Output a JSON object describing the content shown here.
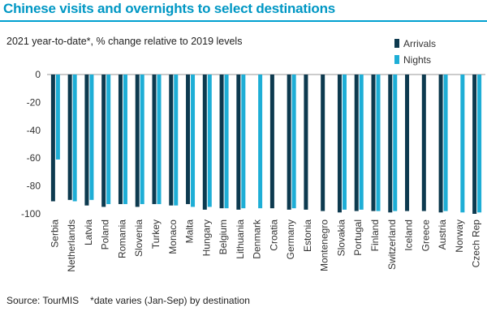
{
  "header": {
    "title": "Chinese visits and overnights to select destinations"
  },
  "footer": {
    "source": "Source: TourMIS",
    "note": "*date varies (Jan-Sep) by destination"
  },
  "colors": {
    "arrivals": "#0d3a4f",
    "nights": "#1eaed6",
    "title": "#0097c4"
  },
  "chart_data": {
    "type": "bar",
    "title": "2021 year-to-date*, % change relative to 2019 levels",
    "xlabel": "",
    "ylabel": "",
    "ylim": [
      -100,
      0
    ],
    "yticks": [
      0,
      -20,
      -40,
      -60,
      -80,
      -100
    ],
    "grid": false,
    "legend_position": "top-right",
    "categories": [
      "Serbia",
      "Netherlands",
      "Latvia",
      "Poland",
      "Romania",
      "Slovenia",
      "Turkey",
      "Monaco",
      "Malta",
      "Hungary",
      "Belgium",
      "Lithuania",
      "Denmark",
      "Croatia",
      "Germany",
      "Estonia",
      "Montenegro",
      "Slovakia",
      "Portugal",
      "Finland",
      "Switzerland",
      "Iceland",
      "Greece",
      "Austria",
      "Norway",
      "Czech Rep"
    ],
    "series": [
      {
        "name": "Arrivals",
        "values": [
          -91,
          -90,
          -94,
          -95,
          -93,
          -95,
          -93,
          -94,
          -93,
          -97,
          -96,
          -97,
          null,
          -96,
          -97,
          -97,
          -98,
          -99,
          -98,
          -98,
          -99,
          -98,
          -98,
          -99,
          null,
          -100
        ]
      },
      {
        "name": "Nights",
        "values": [
          -61,
          -91,
          -90,
          -93,
          -93,
          -93,
          -93,
          -94,
          -95,
          -95,
          -96,
          -96,
          -96,
          null,
          -96,
          null,
          null,
          -97,
          -97,
          -98,
          -98,
          null,
          null,
          -98,
          -99,
          -99
        ]
      }
    ]
  }
}
